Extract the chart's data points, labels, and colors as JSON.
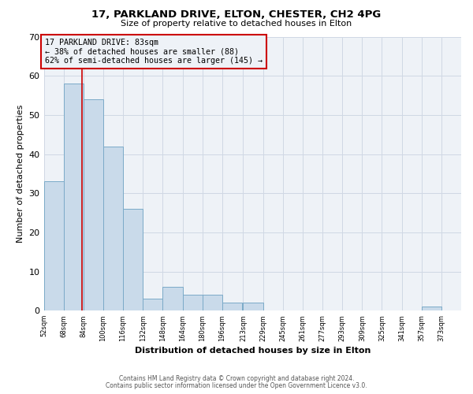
{
  "title": "17, PARKLAND DRIVE, ELTON, CHESTER, CH2 4PG",
  "subtitle": "Size of property relative to detached houses in Elton",
  "xlabel": "Distribution of detached houses by size in Elton",
  "ylabel": "Number of detached properties",
  "bar_left_edges": [
    52,
    68,
    84,
    100,
    116,
    132,
    148,
    164,
    180,
    196,
    213,
    229,
    245,
    261,
    277,
    293,
    309,
    325,
    341,
    357
  ],
  "bar_widths": [
    16,
    16,
    16,
    16,
    16,
    16,
    16,
    16,
    16,
    16,
    16,
    16,
    16,
    16,
    16,
    16,
    16,
    16,
    16,
    16
  ],
  "bar_heights": [
    33,
    58,
    54,
    42,
    26,
    3,
    6,
    4,
    4,
    2,
    2,
    0,
    0,
    0,
    0,
    0,
    0,
    0,
    0,
    1
  ],
  "bar_color": "#c9daea",
  "bar_edge_color": "#7baac8",
  "x_tick_labels": [
    "52sqm",
    "68sqm",
    "84sqm",
    "100sqm",
    "116sqm",
    "132sqm",
    "148sqm",
    "164sqm",
    "180sqm",
    "196sqm",
    "213sqm",
    "229sqm",
    "245sqm",
    "261sqm",
    "277sqm",
    "293sqm",
    "309sqm",
    "325sqm",
    "341sqm",
    "357sqm",
    "373sqm"
  ],
  "x_tick_positions": [
    52,
    68,
    84,
    100,
    116,
    132,
    148,
    164,
    180,
    196,
    213,
    229,
    245,
    261,
    277,
    293,
    309,
    325,
    341,
    357,
    373
  ],
  "xlim": [
    52,
    389
  ],
  "ylim": [
    0,
    70
  ],
  "yticks": [
    0,
    10,
    20,
    30,
    40,
    50,
    60,
    70
  ],
  "marker_x": 83,
  "marker_color": "#cc0000",
  "annotation_title": "17 PARKLAND DRIVE: 83sqm",
  "annotation_line1": "← 38% of detached houses are smaller (88)",
  "annotation_line2": "62% of semi-detached houses are larger (145) →",
  "annotation_box_color": "#cc0000",
  "grid_color": "#d0d8e4",
  "plot_bg_color": "#eef2f7",
  "fig_bg_color": "#ffffff",
  "footer1": "Contains HM Land Registry data © Crown copyright and database right 2024.",
  "footer2": "Contains public sector information licensed under the Open Government Licence v3.0."
}
